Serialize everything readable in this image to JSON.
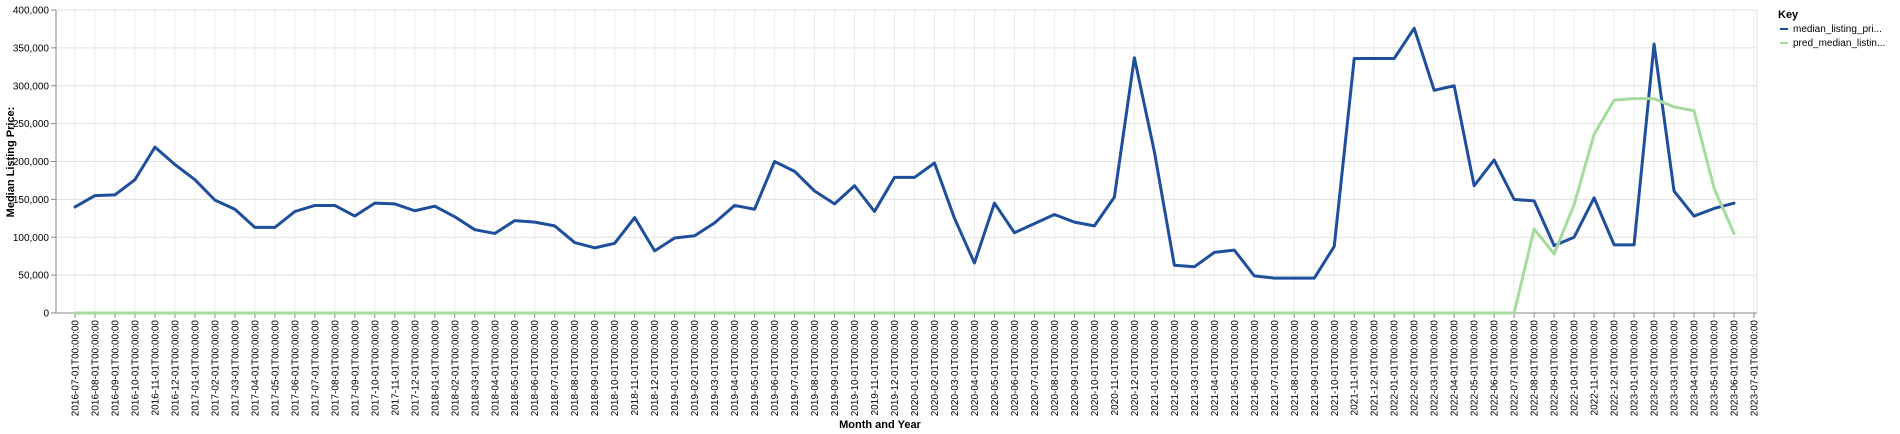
{
  "chart_data": {
    "type": "line",
    "xlabel": "Month and Year",
    "ylabel": "Median Listing Price:",
    "ylim": [
      0,
      400000
    ],
    "yticks": [
      "0",
      "50,000",
      "100,000",
      "150,000",
      "200,000",
      "250,000",
      "300,000",
      "350,000",
      "400,000"
    ],
    "grid": true,
    "legend_title": "Key",
    "legend_position": "right",
    "x": [
      "2016-07-01T00:00:00",
      "2016-08-01T00:00:00",
      "2016-09-01T00:00:00",
      "2016-10-01T00:00:00",
      "2016-11-01T00:00:00",
      "2016-12-01T00:00:00",
      "2017-01-01T00:00:00",
      "2017-02-01T00:00:00",
      "2017-03-01T00:00:00",
      "2017-04-01T00:00:00",
      "2017-05-01T00:00:00",
      "2017-06-01T00:00:00",
      "2017-07-01T00:00:00",
      "2017-08-01T00:00:00",
      "2017-09-01T00:00:00",
      "2017-10-01T00:00:00",
      "2017-11-01T00:00:00",
      "2017-12-01T00:00:00",
      "2018-01-01T00:00:00",
      "2018-02-01T00:00:00",
      "2018-03-01T00:00:00",
      "2018-04-01T00:00:00",
      "2018-05-01T00:00:00",
      "2018-06-01T00:00:00",
      "2018-07-01T00:00:00",
      "2018-08-01T00:00:00",
      "2018-09-01T00:00:00",
      "2018-10-01T00:00:00",
      "2018-11-01T00:00:00",
      "2018-12-01T00:00:00",
      "2019-01-01T00:00:00",
      "2019-02-01T00:00:00",
      "2019-03-01T00:00:00",
      "2019-04-01T00:00:00",
      "2019-05-01T00:00:00",
      "2019-06-01T00:00:00",
      "2019-07-01T00:00:00",
      "2019-08-01T00:00:00",
      "2019-09-01T00:00:00",
      "2019-10-01T00:00:00",
      "2019-11-01T00:00:00",
      "2019-12-01T00:00:00",
      "2020-01-01T00:00:00",
      "2020-02-01T00:00:00",
      "2020-03-01T00:00:00",
      "2020-04-01T00:00:00",
      "2020-05-01T00:00:00",
      "2020-06-01T00:00:00",
      "2020-07-01T00:00:00",
      "2020-08-01T00:00:00",
      "2020-09-01T00:00:00",
      "2020-10-01T00:00:00",
      "2020-11-01T00:00:00",
      "2020-12-01T00:00:00",
      "2021-01-01T00:00:00",
      "2021-02-01T00:00:00",
      "2021-03-01T00:00:00",
      "2021-04-01T00:00:00",
      "2021-05-01T00:00:00",
      "2021-06-01T00:00:00",
      "2021-07-01T00:00:00",
      "2021-08-01T00:00:00",
      "2021-09-01T00:00:00",
      "2021-10-01T00:00:00",
      "2021-11-01T00:00:00",
      "2021-12-01T00:00:00",
      "2022-01-01T00:00:00",
      "2022-02-01T00:00:00",
      "2022-03-01T00:00:00",
      "2022-04-01T00:00:00",
      "2022-05-01T00:00:00",
      "2022-06-01T00:00:00",
      "2022-07-01T00:00:00",
      "2022-08-01T00:00:00",
      "2022-09-01T00:00:00",
      "2022-10-01T00:00:00",
      "2022-11-01T00:00:00",
      "2022-12-01T00:00:00",
      "2023-01-01T00:00:00",
      "2023-02-01T00:00:00",
      "2023-03-01T00:00:00",
      "2023-04-01T00:00:00",
      "2023-05-01T00:00:00",
      "2023-06-01T00:00:00",
      "2023-07-01T00:00:00"
    ],
    "series": [
      {
        "name": "median_listing_pri...",
        "color": "#1f4e9c",
        "values": [
          140000,
          155000,
          156000,
          176000,
          219000,
          196000,
          176000,
          149000,
          137000,
          113000,
          113000,
          134000,
          142000,
          142000,
          128000,
          145000,
          144000,
          135000,
          141000,
          127000,
          110000,
          105000,
          122000,
          120000,
          115000,
          93000,
          86000,
          92000,
          126000,
          82000,
          99000,
          102000,
          119000,
          142000,
          137000,
          200000,
          187000,
          161000,
          144000,
          168000,
          134000,
          179000,
          179000,
          198000,
          125000,
          66000,
          145000,
          106000,
          118000,
          130000,
          120000,
          115000,
          153000,
          337000,
          213000,
          63000,
          61000,
          80000,
          83000,
          49000,
          46000,
          46000,
          46000,
          88000,
          336000,
          336000,
          336000,
          376000,
          294000,
          300000,
          168000,
          202000,
          150000,
          148000,
          89000,
          100000,
          152000,
          90000,
          90000,
          355000,
          161000,
          128000,
          138000,
          145000,
          null
        ]
      },
      {
        "name": "pred_median_listin...",
        "color": "#a6dba0",
        "values": [
          0,
          0,
          0,
          0,
          0,
          0,
          0,
          0,
          0,
          0,
          0,
          0,
          0,
          0,
          0,
          0,
          0,
          0,
          0,
          0,
          0,
          0,
          0,
          0,
          0,
          0,
          0,
          0,
          0,
          0,
          0,
          0,
          0,
          0,
          0,
          0,
          0,
          0,
          0,
          0,
          0,
          0,
          0,
          0,
          0,
          0,
          0,
          0,
          0,
          0,
          0,
          0,
          0,
          0,
          0,
          0,
          0,
          0,
          0,
          0,
          0,
          0,
          0,
          0,
          0,
          0,
          0,
          0,
          0,
          0,
          0,
          0,
          0,
          111000,
          78000,
          143000,
          236000,
          281000,
          283000,
          283000,
          272000,
          267000,
          165000,
          105000,
          null
        ]
      }
    ]
  }
}
